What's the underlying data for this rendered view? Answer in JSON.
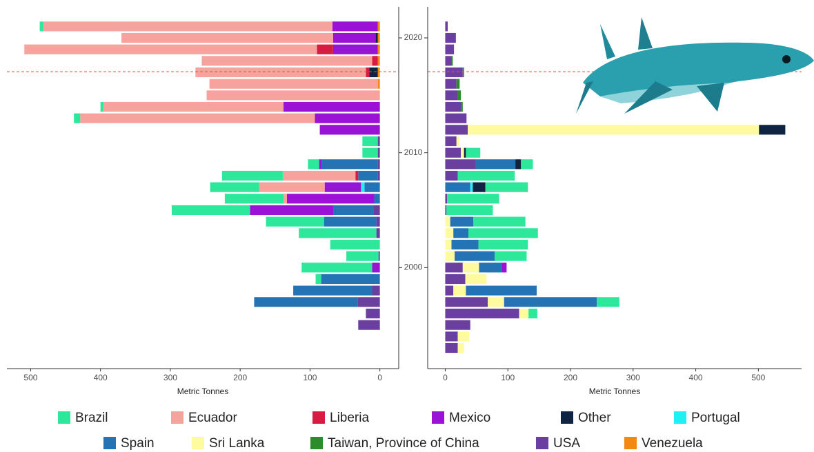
{
  "chart_data": [
    {
      "type": "bar",
      "orientation": "horizontal",
      "x_reversed": true,
      "y": [
        1993,
        1994,
        1995,
        1996,
        1997,
        1998,
        1999,
        2000,
        2001,
        2002,
        2003,
        2004,
        2005,
        2006,
        2007,
        2008,
        2009,
        2010,
        2011,
        2012,
        2013,
        2014,
        2015,
        2016,
        2017,
        2018,
        2019,
        2020,
        2021
      ],
      "ylim": [
        1991.2,
        2022.7
      ],
      "yticks": [
        2000,
        2010,
        2020
      ],
      "xlim": [
        -27,
        534
      ],
      "xticks": [
        0,
        100,
        200,
        300,
        400,
        500
      ],
      "xlabel": "Metric Tonnes",
      "series": [
        {
          "name": "Brazil",
          "color": "#2de89b",
          "values": [
            0,
            0,
            0,
            0,
            0,
            0,
            8,
            101,
            46,
            71,
            111,
            83,
            112,
            84,
            70,
            87,
            16,
            22,
            22,
            0,
            9,
            4,
            0,
            0,
            0,
            0,
            0,
            0,
            5
          ]
        },
        {
          "name": "Ecuador",
          "color": "#f5a39c",
          "values": [
            0,
            0,
            0,
            0,
            0,
            0,
            0,
            0,
            0,
            0,
            0,
            0,
            0,
            5,
            94,
            104,
            0,
            0,
            0,
            0,
            336,
            258,
            248,
            241,
            244,
            244,
            419,
            303,
            414
          ]
        },
        {
          "name": "Liberia",
          "color": "#d81b42",
          "values": [
            0,
            0,
            0,
            0,
            0,
            0,
            0,
            0,
            0,
            0,
            0,
            0,
            0,
            0,
            0,
            4,
            0,
            0,
            0,
            0,
            0,
            0,
            0,
            0,
            5,
            8,
            23,
            0,
            0
          ]
        },
        {
          "name": "Mexico",
          "color": "#9a12d6",
          "values": [
            0,
            0,
            0,
            0,
            0,
            0,
            0,
            11,
            0,
            0,
            0,
            0,
            120,
            125,
            52,
            0,
            4,
            0,
            0,
            86,
            93,
            138,
            0,
            0,
            0,
            0,
            64,
            61,
            65
          ]
        },
        {
          "name": "Other",
          "color": "#0f2442",
          "values": [
            0,
            0,
            0,
            0,
            0,
            0,
            0,
            0,
            0,
            0,
            0,
            0,
            0,
            0,
            0,
            0,
            0,
            0,
            0,
            0,
            0,
            0,
            0,
            0,
            12,
            0,
            0,
            3,
            0
          ]
        },
        {
          "name": "Portugal",
          "color": "#1ff0f2",
          "values": [
            0,
            0,
            0,
            0,
            0,
            0,
            0,
            0,
            0,
            0,
            0,
            0,
            0,
            0,
            5,
            0,
            0,
            0,
            0,
            0,
            0,
            0,
            0,
            0,
            0,
            0,
            0,
            0,
            0
          ]
        },
        {
          "name": "Spain",
          "color": "#2473b5",
          "values": [
            0,
            0,
            0,
            0,
            148,
            113,
            84,
            0,
            0,
            0,
            0,
            75,
            57,
            8,
            22,
            28,
            80,
            0,
            0,
            0,
            0,
            0,
            0,
            0,
            0,
            0,
            0,
            0,
            0
          ]
        },
        {
          "name": "Sri Lanka",
          "color": "#fdfb9e",
          "values": [
            0,
            0,
            0,
            0,
            0,
            0,
            0,
            0,
            0,
            0,
            0,
            0,
            0,
            0,
            0,
            0,
            0,
            0,
            0,
            0,
            0,
            0,
            0,
            0,
            0,
            0,
            0,
            0,
            0
          ]
        },
        {
          "name": "Taiwan, Province of China",
          "color": "#2b8c2b",
          "values": [
            0,
            0,
            0,
            0,
            0,
            0,
            0,
            0,
            0,
            0,
            0,
            0,
            0,
            0,
            0,
            0,
            0,
            0,
            0,
            0,
            0,
            0,
            0,
            0,
            0,
            0,
            0,
            0,
            0
          ]
        },
        {
          "name": "USA",
          "color": "#6b3fa0",
          "values": [
            0,
            0,
            31,
            20,
            32,
            11,
            0,
            0,
            2,
            0,
            5,
            5,
            9,
            0,
            0,
            3,
            3,
            3,
            3,
            0,
            0,
            0,
            0,
            0,
            0,
            0,
            0,
            0,
            0
          ]
        },
        {
          "name": "Venezuela",
          "color": "#f28a12",
          "values": [
            0,
            0,
            0,
            0,
            0,
            0,
            0,
            0,
            0,
            0,
            0,
            0,
            0,
            0,
            0,
            0,
            0,
            0,
            0,
            0,
            0,
            0,
            0,
            3,
            3,
            3,
            3,
            3,
            3
          ]
        }
      ]
    },
    {
      "type": "bar",
      "orientation": "horizontal",
      "x_reversed": false,
      "xlim": [
        -28,
        569
      ],
      "xticks": [
        0,
        100,
        200,
        300,
        400,
        500
      ],
      "xlabel": "Metric Tonnes",
      "series": [
        {
          "values": [
            0,
            0,
            0,
            14,
            36,
            0,
            0,
            0,
            51,
            79,
            111,
            83,
            74,
            83,
            68,
            91,
            19,
            23,
            0,
            0,
            0,
            0,
            0,
            0,
            0,
            0,
            0,
            0,
            0
          ]
        },
        {
          "values": [
            0,
            0,
            0,
            0,
            0,
            0,
            0,
            0,
            0,
            0,
            0,
            0,
            0,
            0,
            0,
            0,
            0,
            0,
            0,
            0,
            0,
            0,
            0,
            0,
            0,
            0,
            0,
            0,
            0
          ]
        },
        {
          "values": [
            0,
            0,
            0,
            0,
            0,
            0,
            0,
            0,
            0,
            0,
            0,
            0,
            0,
            0,
            0,
            0,
            0,
            0,
            0,
            0,
            0,
            0,
            0,
            0,
            0,
            0,
            0,
            0,
            0
          ]
        },
        {
          "values": [
            0,
            0,
            0,
            0,
            0,
            0,
            0,
            8,
            0,
            0,
            0,
            0,
            0,
            0,
            0,
            0,
            0,
            0,
            0,
            0,
            0,
            0,
            0,
            0,
            0,
            0,
            0,
            0,
            0
          ]
        },
        {
          "values": [
            0,
            0,
            0,
            0,
            0,
            0,
            0,
            0,
            0,
            0,
            0,
            0,
            0,
            0,
            20,
            0,
            9,
            3,
            0,
            42,
            0,
            0,
            0,
            0,
            0,
            0,
            0,
            0,
            0
          ]
        },
        {
          "values": [
            0,
            0,
            0,
            0,
            0,
            0,
            0,
            0,
            0,
            0,
            0,
            0,
            0,
            0,
            4,
            0,
            0,
            0,
            0,
            0,
            0,
            0,
            0,
            0,
            0,
            0,
            0,
            0,
            0
          ]
        },
        {
          "values": [
            0,
            0,
            0,
            0,
            148,
            113,
            0,
            36,
            64,
            43,
            24,
            37,
            0,
            0,
            40,
            0,
            63,
            0,
            0,
            0,
            0,
            0,
            0,
            0,
            0,
            0,
            0,
            0,
            0
          ]
        },
        {
          "values": [
            10,
            18,
            0,
            15,
            26,
            20,
            34,
            26,
            15,
            10,
            13,
            8,
            0,
            0,
            0,
            0,
            0,
            5,
            5,
            465,
            0,
            0,
            0,
            0,
            0,
            0,
            0,
            0,
            0
          ]
        },
        {
          "values": [
            0,
            0,
            0,
            0,
            0,
            0,
            0,
            0,
            0,
            0,
            0,
            0,
            0,
            0,
            0,
            0,
            0,
            0,
            0,
            0,
            0,
            3,
            5,
            5,
            2,
            2,
            0,
            0,
            0
          ]
        },
        {
          "values": [
            20,
            20,
            40,
            118,
            68,
            13,
            32,
            28,
            0,
            0,
            0,
            0,
            2,
            3,
            0,
            20,
            49,
            25,
            18,
            36,
            34,
            25,
            20,
            18,
            28,
            10,
            14,
            17,
            4
          ]
        },
        {
          "values": [
            0,
            0,
            0,
            0,
            0,
            0,
            0,
            0,
            0,
            0,
            0,
            0,
            0,
            0,
            0,
            0,
            0,
            0,
            0,
            0,
            0,
            0,
            0,
            0,
            0,
            0,
            0,
            0,
            0
          ]
        }
      ]
    }
  ]
}
